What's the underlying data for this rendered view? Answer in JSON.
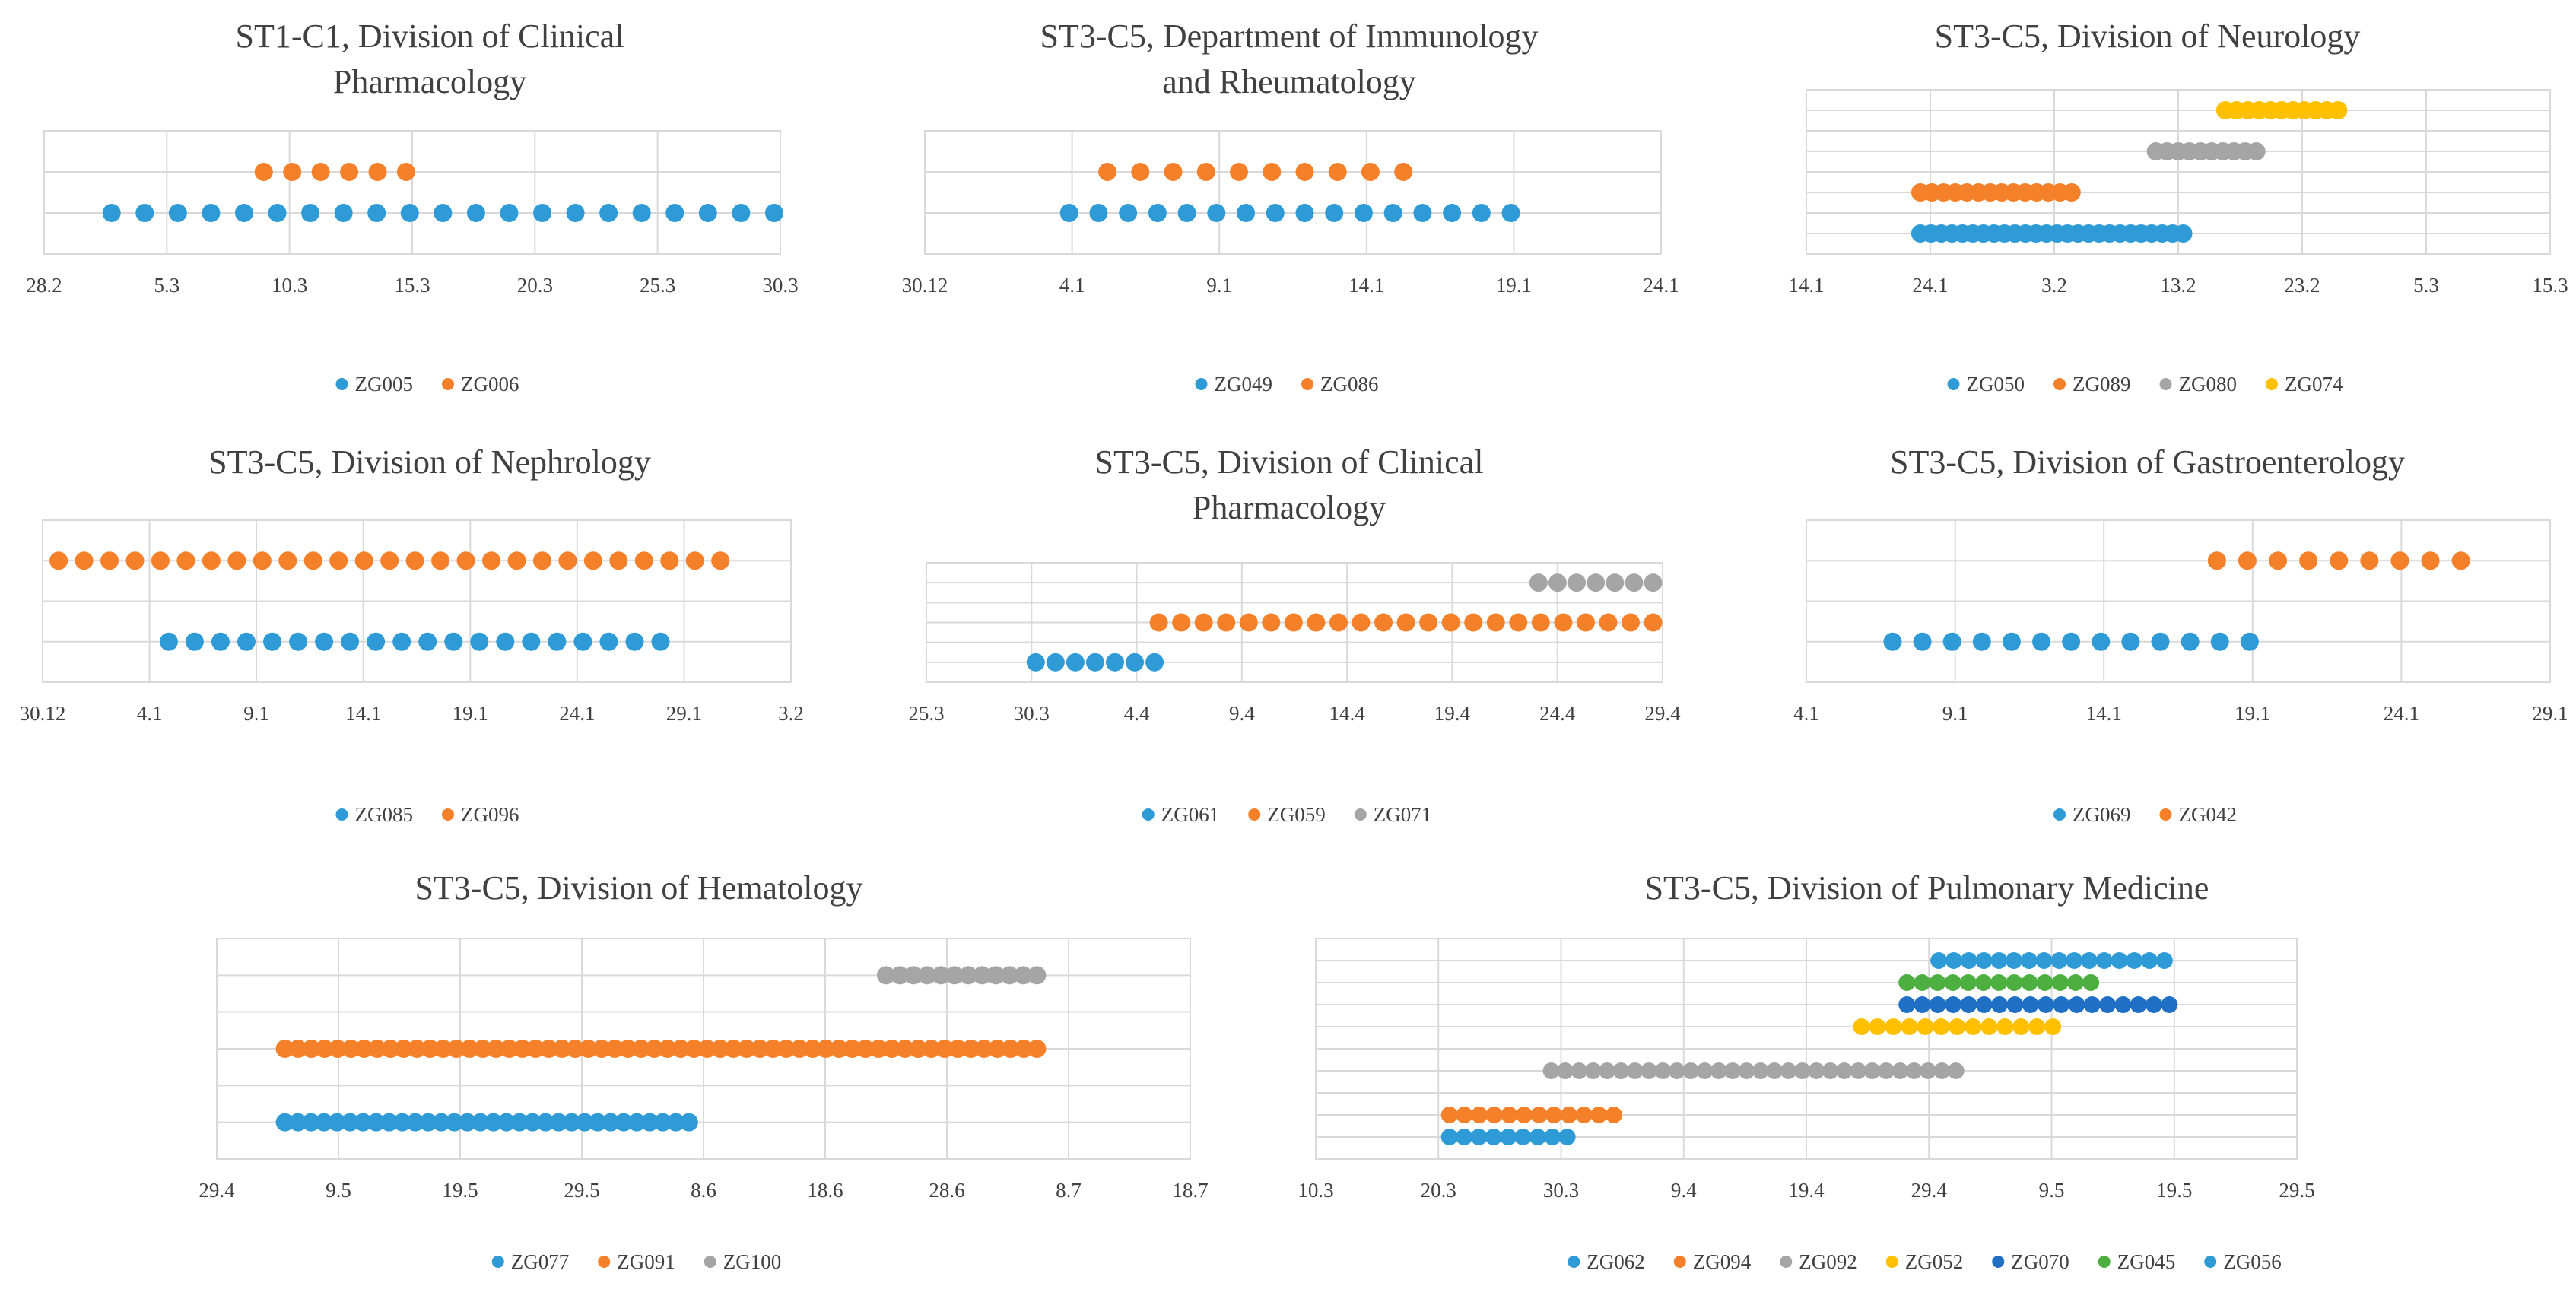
{
  "colors": {
    "blue": "#2e9bd6",
    "orange": "#f5802a",
    "gray": "#a5a5a5",
    "yellow": "#ffc000",
    "darkblue": "#1f6fc5",
    "green": "#4caf3f",
    "grid": "#d9d9d9",
    "text": "#404040"
  },
  "chart_data": [
    {
      "type": "scatter",
      "title": "ST1-C1, Division of Clinical Pharmacology",
      "title_lines": [
        "ST1-C1, Division of Clinical",
        "Pharmacology"
      ],
      "x_ticks": [
        "28.2",
        "5.3",
        "10.3",
        "15.3",
        "20.3",
        "25.3",
        "30.3"
      ],
      "series": [
        {
          "name": "ZG005",
          "color": "blue",
          "row": 1,
          "start": 0.55,
          "end": 5.95,
          "count": 21
        },
        {
          "name": "ZG006",
          "color": "orange",
          "row": 2,
          "start": 1.79,
          "end": 2.95,
          "count": 6
        }
      ],
      "rows": 3,
      "legend": "bottom"
    },
    {
      "type": "scatter",
      "title": "ST3-C5, Department of Immunology and Rheumatology",
      "title_lines": [
        "ST3-C5, Department of Immunology",
        "and Rheumatology"
      ],
      "x_ticks": [
        "30.12",
        "4.1",
        "9.1",
        "14.1",
        "19.1",
        "24.1"
      ],
      "series": [
        {
          "name": "ZG049",
          "color": "blue",
          "row": 1,
          "start": 0.98,
          "end": 3.98,
          "count": 16
        },
        {
          "name": "ZG086",
          "color": "orange",
          "row": 2,
          "start": 1.24,
          "end": 3.25,
          "count": 10
        }
      ],
      "rows": 3,
      "legend": "bottom"
    },
    {
      "type": "scatter",
      "title": "ST3-C5, Division of Neurology",
      "title_lines": [
        "ST3-C5, Division of Neurology"
      ],
      "x_ticks": [
        "14.1",
        "24.1",
        "3.2",
        "13.2",
        "23.2",
        "5.3",
        "15.3"
      ],
      "series": [
        {
          "name": "ZG050",
          "color": "blue",
          "row": 1,
          "start": 0.92,
          "end": 3.04,
          "count": 26
        },
        {
          "name": "ZG089",
          "color": "orange",
          "row": 3,
          "start": 0.92,
          "end": 2.14,
          "count": 14
        },
        {
          "name": "ZG080",
          "color": "gray",
          "row": 5,
          "start": 2.82,
          "end": 3.63,
          "count": 10
        },
        {
          "name": "ZG074",
          "color": "yellow",
          "row": 7,
          "start": 3.38,
          "end": 4.29,
          "count": 11
        }
      ],
      "rows": 8,
      "legend": "bottom"
    },
    {
      "type": "scatter",
      "title": "ST3-C5, Division of Nephrology",
      "title_lines": [
        "ST3-C5, Division of Nephrology"
      ],
      "x_ticks": [
        "30.12",
        "4.1",
        "9.1",
        "14.1",
        "19.1",
        "24.1",
        "29.1",
        "3.2"
      ],
      "series": [
        {
          "name": "ZG085",
          "color": "blue",
          "row": 1,
          "start": 1.18,
          "end": 5.78,
          "count": 20
        },
        {
          "name": "ZG096",
          "color": "orange",
          "row": 3,
          "start": 0.15,
          "end": 6.34,
          "count": 27
        }
      ],
      "rows": 4,
      "legend": "bottom"
    },
    {
      "type": "scatter",
      "title": "ST3-C5, Division of Clinical Pharmacology",
      "title_lines": [
        "ST3-C5, Division of Clinical",
        "Pharmacology"
      ],
      "x_ticks": [
        "25.3",
        "30.3",
        "4.4",
        "9.4",
        "14.4",
        "19.4",
        "24.4",
        "29.4"
      ],
      "series": [
        {
          "name": "ZG061",
          "color": "blue",
          "row": 1,
          "start": 1.04,
          "end": 2.17,
          "count": 7
        },
        {
          "name": "ZG059",
          "color": "orange",
          "row": 3,
          "start": 2.21,
          "end": 6.91,
          "count": 23
        },
        {
          "name": "ZG071",
          "color": "gray",
          "row": 5,
          "start": 5.82,
          "end": 6.91,
          "count": 7
        }
      ],
      "rows": 6,
      "legend": "bottom"
    },
    {
      "type": "scatter",
      "title": "ST3-C5, Division of Gastroenterology",
      "title_lines": [
        "ST3-C5, Division of Gastroenterology"
      ],
      "x_ticks": [
        "4.1",
        "9.1",
        "14.1",
        "19.1",
        "24.1",
        "29.1"
      ],
      "series": [
        {
          "name": "ZG069",
          "color": "blue",
          "row": 1,
          "start": 0.58,
          "end": 2.98,
          "count": 13
        },
        {
          "name": "ZG042",
          "color": "orange",
          "row": 3,
          "start": 2.76,
          "end": 4.4,
          "count": 9
        }
      ],
      "rows": 4,
      "legend": "bottom"
    },
    {
      "type": "scatter",
      "title": "ST3-C5, Division of Hematology",
      "title_lines": [
        "ST3-C5, Division of Hematology"
      ],
      "x_ticks": [
        "29.4",
        "9.5",
        "19.5",
        "29.5",
        "8.6",
        "18.6",
        "28.6",
        "8.7",
        "18.7"
      ],
      "series": [
        {
          "name": "ZG077",
          "color": "blue",
          "row": 1,
          "start": 0.56,
          "end": 3.88,
          "count": 32
        },
        {
          "name": "ZG091",
          "color": "orange",
          "row": 3,
          "start": 0.56,
          "end": 6.74,
          "count": 58
        },
        {
          "name": "ZG100",
          "color": "gray",
          "row": 5,
          "start": 5.5,
          "end": 6.74,
          "count": 12
        }
      ],
      "rows": 6,
      "legend": "bottom"
    },
    {
      "type": "scatter",
      "title": "ST3-C5, Division of Pulmonary Medicine",
      "title_lines": [
        "ST3-C5, Division of Pulmonary Medicine"
      ],
      "x_ticks": [
        "10.3",
        "20.3",
        "30.3",
        "9.4",
        "19.4",
        "29.4",
        "9.5",
        "19.5",
        "29.5"
      ],
      "series": [
        {
          "name": "ZG062",
          "color": "blue",
          "row": 1,
          "start": 1.09,
          "end": 2.05,
          "count": 9
        },
        {
          "name": "ZG094",
          "color": "orange",
          "row": 2,
          "start": 1.09,
          "end": 2.43,
          "count": 12
        },
        {
          "name": "ZG092",
          "color": "gray",
          "row": 4,
          "start": 1.92,
          "end": 5.22,
          "count": 30
        },
        {
          "name": "ZG052",
          "color": "yellow",
          "row": 6,
          "start": 4.45,
          "end": 6.01,
          "count": 13
        },
        {
          "name": "ZG070",
          "color": "darkblue",
          "row": 7,
          "start": 4.82,
          "end": 6.96,
          "count": 18
        },
        {
          "name": "ZG045",
          "color": "green",
          "row": 8,
          "start": 4.82,
          "end": 6.32,
          "count": 13
        },
        {
          "name": "ZG056",
          "color": "blue",
          "row": 9,
          "start": 5.08,
          "end": 6.92,
          "count": 16
        }
      ],
      "rows": 10,
      "legend": "bottom"
    }
  ]
}
